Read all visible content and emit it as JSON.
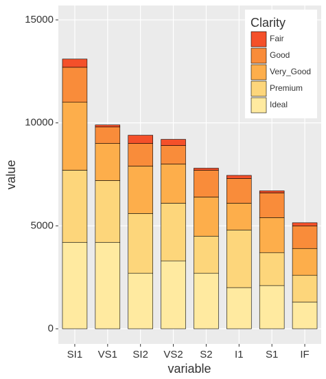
{
  "chart_data": {
    "type": "bar",
    "stacked": true,
    "x_label": "variable",
    "y_label": "value",
    "categories": [
      "SI1",
      "VS1",
      "SI2",
      "VS2",
      "S2",
      "I1",
      "S1",
      "IF"
    ],
    "series": [
      {
        "name": "Ideal",
        "color": "#ffeaa0",
        "values": [
          4200,
          4200,
          2700,
          3300,
          2700,
          2000,
          2100,
          1300
        ]
      },
      {
        "name": "Premium",
        "color": "#fdd67b",
        "values": [
          3500,
          3000,
          2900,
          2800,
          1800,
          2800,
          1600,
          1300
        ]
      },
      {
        "name": "Very_Good",
        "color": "#fdae4b",
        "values": [
          3300,
          1800,
          2300,
          1900,
          1900,
          1300,
          1700,
          1300
        ]
      },
      {
        "name": "Good",
        "color": "#f98c3a",
        "values": [
          1700,
          800,
          1100,
          900,
          1300,
          1200,
          1200,
          1100
        ]
      },
      {
        "name": "Fair",
        "color": "#f4502a",
        "values": [
          400,
          100,
          400,
          300,
          100,
          150,
          100,
          150
        ]
      }
    ],
    "legend_title": "Clarity",
    "legend_position": "top-right",
    "ylim": [
      -735,
      15700
    ],
    "yticks": [
      0,
      5000,
      10000,
      15000
    ],
    "grid": true
  }
}
